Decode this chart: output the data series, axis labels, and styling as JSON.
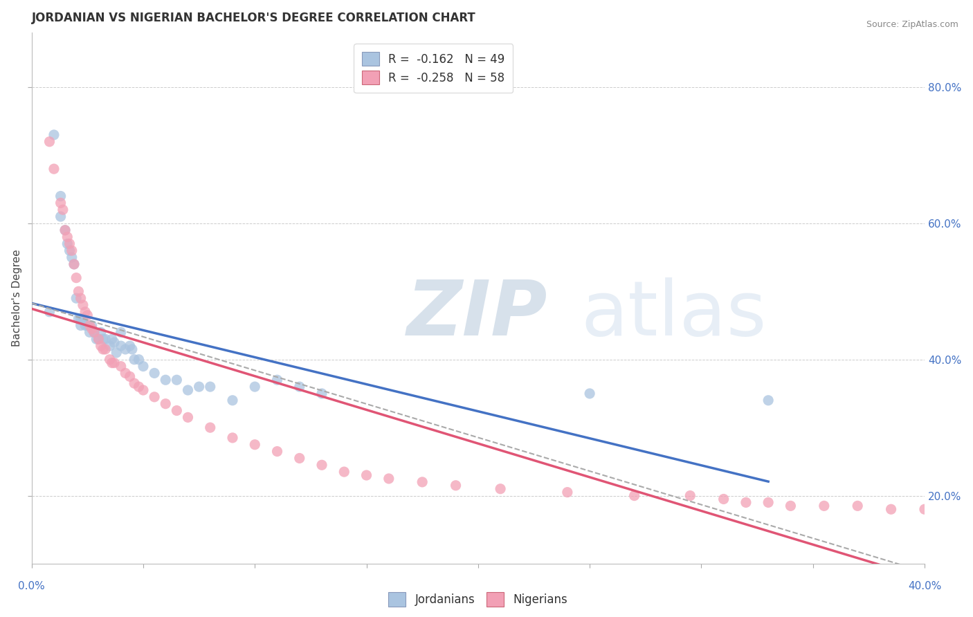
{
  "title": "JORDANIAN VS NIGERIAN BACHELOR'S DEGREE CORRELATION CHART",
  "source": "Source: ZipAtlas.com",
  "ylabel": "Bachelor's Degree",
  "yticks": [
    0.2,
    0.4,
    0.6,
    0.8
  ],
  "ytick_labels": [
    "20.0%",
    "40.0%",
    "60.0%",
    "80.0%"
  ],
  "xlim": [
    0.0,
    0.4
  ],
  "ylim": [
    0.1,
    0.88
  ],
  "legend_r1": "R =  -0.162   N = 49",
  "legend_r2": "R =  -0.258   N = 58",
  "color_jordan": "#aac4e0",
  "color_nigeria": "#f2a0b5",
  "color_jordan_line": "#4472c4",
  "color_nigeria_line": "#e05575",
  "color_dashed": "#aaaaaa",
  "jordan_x": [
    0.008,
    0.01,
    0.013,
    0.013,
    0.015,
    0.016,
    0.017,
    0.018,
    0.019,
    0.02,
    0.021,
    0.022,
    0.022,
    0.023,
    0.024,
    0.025,
    0.026,
    0.027,
    0.028,
    0.029,
    0.03,
    0.031,
    0.032,
    0.033,
    0.035,
    0.036,
    0.037,
    0.038,
    0.04,
    0.04,
    0.042,
    0.044,
    0.045,
    0.046,
    0.048,
    0.05,
    0.055,
    0.06,
    0.065,
    0.07,
    0.075,
    0.08,
    0.09,
    0.1,
    0.11,
    0.12,
    0.13,
    0.25,
    0.33
  ],
  "jordan_y": [
    0.47,
    0.73,
    0.64,
    0.61,
    0.59,
    0.57,
    0.56,
    0.55,
    0.54,
    0.49,
    0.46,
    0.46,
    0.45,
    0.46,
    0.45,
    0.45,
    0.44,
    0.45,
    0.44,
    0.43,
    0.43,
    0.44,
    0.43,
    0.43,
    0.42,
    0.43,
    0.425,
    0.41,
    0.42,
    0.44,
    0.415,
    0.42,
    0.415,
    0.4,
    0.4,
    0.39,
    0.38,
    0.37,
    0.37,
    0.355,
    0.36,
    0.36,
    0.34,
    0.36,
    0.37,
    0.36,
    0.35,
    0.35,
    0.34
  ],
  "nigeria_x": [
    0.008,
    0.01,
    0.013,
    0.014,
    0.015,
    0.016,
    0.017,
    0.018,
    0.019,
    0.02,
    0.021,
    0.022,
    0.023,
    0.024,
    0.025,
    0.026,
    0.027,
    0.028,
    0.03,
    0.031,
    0.032,
    0.033,
    0.035,
    0.036,
    0.037,
    0.04,
    0.042,
    0.044,
    0.046,
    0.048,
    0.05,
    0.055,
    0.06,
    0.065,
    0.07,
    0.08,
    0.09,
    0.1,
    0.11,
    0.12,
    0.13,
    0.14,
    0.15,
    0.16,
    0.175,
    0.19,
    0.21,
    0.24,
    0.27,
    0.295,
    0.31,
    0.32,
    0.33,
    0.34,
    0.355,
    0.37,
    0.385,
    0.4
  ],
  "nigeria_y": [
    0.72,
    0.68,
    0.63,
    0.62,
    0.59,
    0.58,
    0.57,
    0.56,
    0.54,
    0.52,
    0.5,
    0.49,
    0.48,
    0.47,
    0.465,
    0.45,
    0.445,
    0.44,
    0.43,
    0.42,
    0.415,
    0.415,
    0.4,
    0.395,
    0.395,
    0.39,
    0.38,
    0.375,
    0.365,
    0.36,
    0.355,
    0.345,
    0.335,
    0.325,
    0.315,
    0.3,
    0.285,
    0.275,
    0.265,
    0.255,
    0.245,
    0.235,
    0.23,
    0.225,
    0.22,
    0.215,
    0.21,
    0.205,
    0.2,
    0.2,
    0.195,
    0.19,
    0.19,
    0.185,
    0.185,
    0.185,
    0.18,
    0.18
  ]
}
